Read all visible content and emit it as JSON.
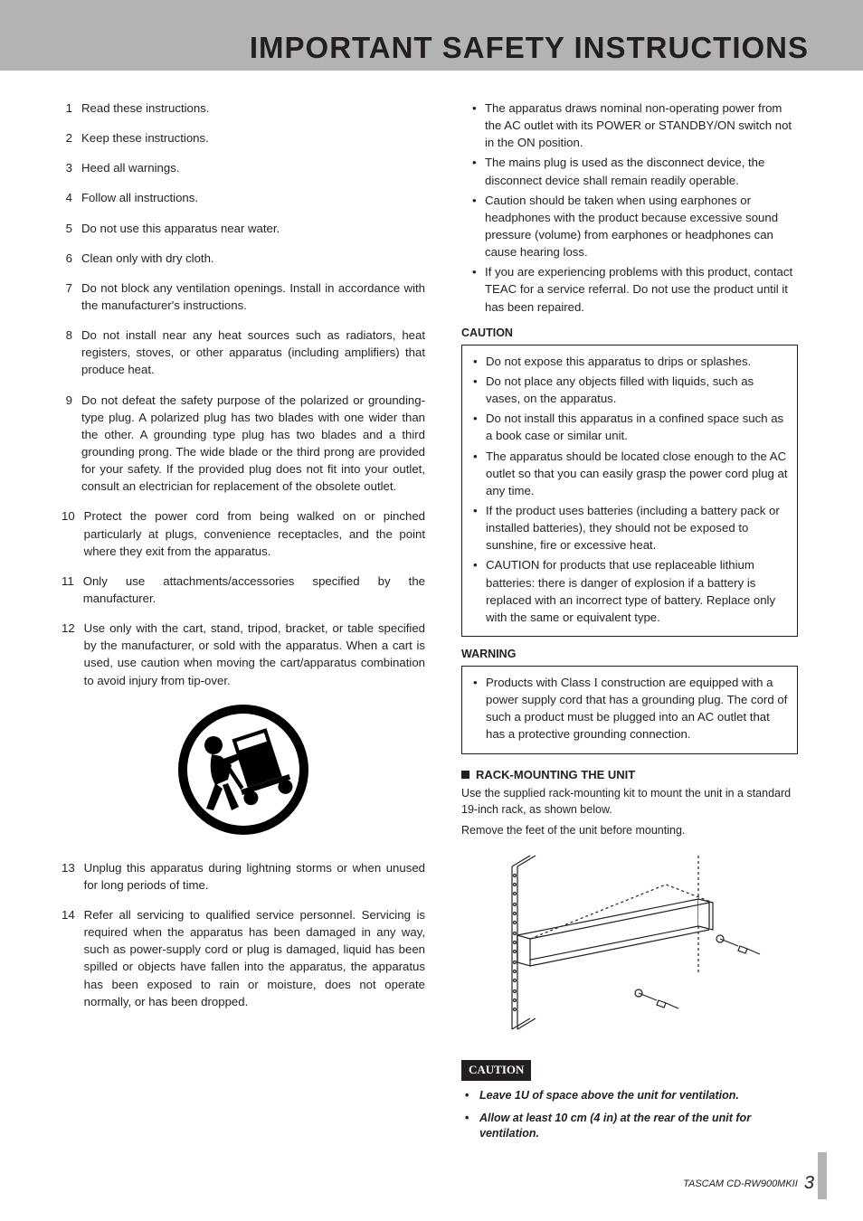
{
  "title": "IMPORTANT SAFETY INSTRUCTIONS",
  "numbered": [
    "Read these instructions.",
    "Keep these instructions.",
    "Heed all warnings.",
    "Follow all instructions.",
    "Do not use this apparatus near water.",
    "Clean only with dry cloth.",
    "Do not block any ventilation openings. Install in accordance with the manufacturer's instructions.",
    "Do not install near any heat sources such as radiators, heat registers, stoves, or other apparatus (including amplifiers) that produce heat.",
    "Do not defeat the safety purpose of the polarized or grounding-type plug. A polarized plug has two blades with one wider than the other. A grounding type plug has two blades and a third grounding prong. The wide blade or the third prong are provided for your safety. If the provided plug does not fit into your outlet, consult an electrician for replacement of the obsolete outlet.",
    "Protect the power cord from being walked on or pinched particularly at plugs, convenience receptacles, and the point where they exit from the apparatus.",
    "Only use attachments/accessories specified by the manufacturer.",
    "Use only with the cart, stand, tripod, bracket, or table specified by the manufacturer, or sold with the apparatus. When a cart is used, use caution when moving the cart/apparatus combination to avoid injury from tip-over.",
    "Unplug this apparatus during lightning storms or when unused for long periods of time.",
    "Refer all servicing to qualified service personnel. Servicing is required when the apparatus has been damaged in any way, such as power-supply cord or plug is damaged, liquid has been spilled or objects have fallen into the apparatus, the apparatus has been exposed to rain or moisture, does not operate normally, or has been dropped."
  ],
  "right_bullets": [
    "The apparatus draws nominal non-operating power from the AC outlet with its POWER or STANDBY/ON switch not in the ON position.",
    "The mains plug is used as the disconnect device, the disconnect device shall remain readily operable.",
    "Caution should be taken when using earphones or headphones with the product because excessive sound pressure (volume) from earphones or headphones can cause hearing loss.",
    "If you are experiencing problems with this product, contact TEAC for a service referral. Do not use the product until it has been repaired."
  ],
  "caution_label": "CAUTION",
  "caution_items": [
    "Do not expose this apparatus to drips or splashes.",
    "Do not place any objects filled with liquids, such as vases, on the apparatus.",
    "Do not install this apparatus in a confined space such as a book case or similar unit.",
    "The apparatus should be located close enough to the AC outlet so that you can easily grasp the power cord plug at any time.",
    "If the product uses batteries (including a battery pack or installed batteries), they should not be exposed to sunshine, fire or excessive heat.",
    "CAUTION for products that use replaceable lithium batteries: there is danger of explosion if a battery is replaced with an incorrect type of battery. Replace only with the same or equivalent type."
  ],
  "warning_label": "WARNING",
  "warning_items_prefix": "Products with Class ",
  "warning_items_class": "I",
  "warning_items_suffix": " construction are equipped with a power supply cord that has a grounding plug. The cord of such a product must be plugged into an AC outlet that has a protective grounding connection.",
  "rack_heading": "RACK-MOUNTING THE UNIT",
  "rack_desc1": "Use the supplied rack-mounting kit to mount the unit in a standard 19-inch rack, as shown below.",
  "rack_desc2": "Remove the feet of the unit before mounting.",
  "caution_pill": "CAUTION",
  "final_bullets": [
    "Leave 1U of space above the unit for ventilation.",
    "Allow at least 10 cm (4 in) at the rear of the unit for ventilation."
  ],
  "footer_model": "TASCAM  CD-RW900MKII",
  "footer_page": "3"
}
